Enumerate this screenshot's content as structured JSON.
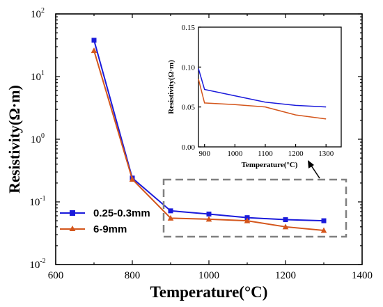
{
  "chart_data": [
    {
      "type": "line",
      "xlabel": "Temperature(°C)",
      "ylabel": "Resistivity(Ω·m)",
      "xlim": [
        600,
        1400
      ],
      "ylim": [
        0.01,
        100
      ],
      "yscale": "log",
      "x_ticks": [
        "600",
        "800",
        "1000",
        "1200",
        "1400"
      ],
      "y_ticks": [
        {
          "base": "10",
          "exp": "-2"
        },
        {
          "base": "10",
          "exp": "-1"
        },
        {
          "base": "10",
          "exp": "0"
        },
        {
          "base": "10",
          "exp": "1"
        },
        {
          "base": "10",
          "exp": "2"
        }
      ],
      "legend_position": "bottom-left",
      "x": [
        700,
        800,
        900,
        1000,
        1100,
        1200,
        1300
      ],
      "series": [
        {
          "name": "0.25-0.3mm",
          "color": "#1a1adb",
          "marker": "square",
          "values": [
            38.0,
            0.24,
            0.072,
            0.064,
            0.056,
            0.052,
            0.05
          ]
        },
        {
          "name": "6-9mm",
          "color": "#d4561c",
          "marker": "triangle",
          "values": [
            26.0,
            0.23,
            0.055,
            0.053,
            0.05,
            0.04,
            0.035
          ]
        }
      ]
    },
    {
      "type": "line",
      "inset": true,
      "xlabel": "Temperature(°C)",
      "ylabel": "Resistivity(Ω·m)",
      "xlim": [
        880,
        1350
      ],
      "ylim": [
        0.0,
        0.15
      ],
      "x_ticks": [
        "900",
        "1000",
        "1100",
        "1200",
        "1300"
      ],
      "y_ticks": [
        "0.00",
        "0.05",
        "0.10",
        "0.15"
      ],
      "x": [
        880,
        900,
        1000,
        1100,
        1200,
        1300
      ],
      "series": [
        {
          "color": "#1a1adb",
          "values": [
            0.098,
            0.072,
            0.064,
            0.056,
            0.052,
            0.05
          ]
        },
        {
          "color": "#d4561c",
          "values": [
            0.085,
            0.055,
            0.053,
            0.05,
            0.04,
            0.035
          ]
        }
      ]
    }
  ]
}
